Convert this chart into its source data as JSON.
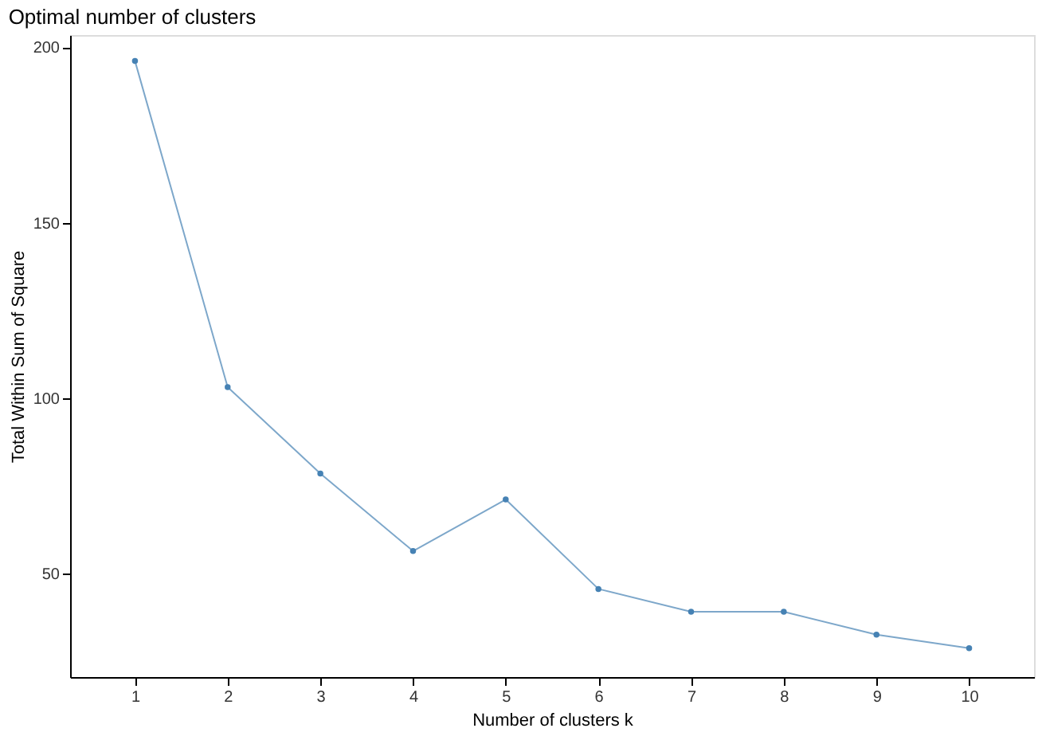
{
  "chart_data": {
    "type": "line",
    "title": "Optimal number of clusters",
    "xlabel": "Number of clusters k",
    "ylabel": "Total Within Sum of Square",
    "categories": [
      "1",
      "2",
      "3",
      "4",
      "5",
      "6",
      "7",
      "8",
      "9",
      "10"
    ],
    "series": [
      {
        "color": "#4682b4",
        "values": [
          196.1,
          103.2,
          78.6,
          56.5,
          71.2,
          45.7,
          39.2,
          39.2,
          32.7,
          28.8
        ]
      }
    ],
    "ylim": [
      20.6,
      203.5
    ],
    "yticks": [
      50,
      100,
      150,
      200
    ],
    "grid": false,
    "marker": "circle",
    "line_style": "solid"
  }
}
